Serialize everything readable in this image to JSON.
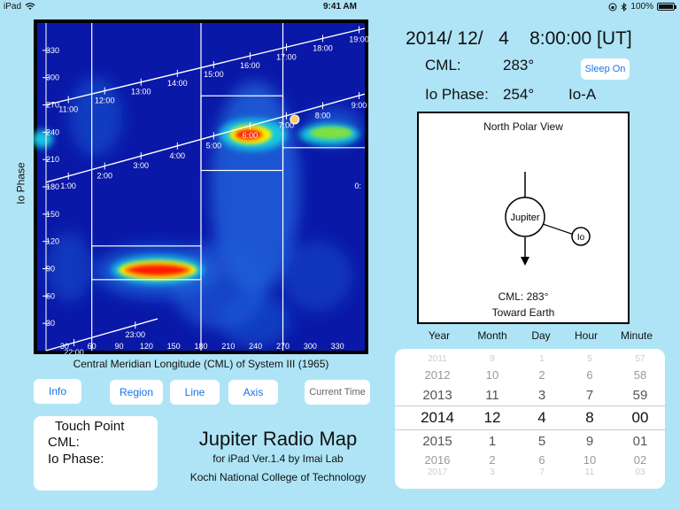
{
  "status": {
    "device": "iPad",
    "time": "9:41 AM",
    "battery": "100%"
  },
  "map": {
    "xlabel": "Central Meridian Longitude (CML) of System III (1965)",
    "ylabel": "Io Phase",
    "x_ticks": [
      "30",
      "60",
      "90",
      "120",
      "150",
      "180",
      "210",
      "240",
      "270",
      "300",
      "330"
    ],
    "y_ticks": [
      "330",
      "300",
      "270",
      "240",
      "210",
      "180",
      "150",
      "120",
      "90",
      "60",
      "30"
    ],
    "hour_labels_row1": [
      "11:00",
      "12:00",
      "13:00",
      "14:00",
      "15:00",
      "16:00",
      "17:00",
      "18:00",
      "19:00"
    ],
    "hour_labels_row2": [
      "1:00",
      "2:00",
      "3:00",
      "4:00",
      "5:00",
      "6:00",
      "7:00",
      "8:00",
      "9:00"
    ],
    "hour_labels_row3": [
      "22:00",
      "23:00"
    ],
    "edge_label": "0:",
    "colors": {
      "background": "#000000",
      "low": "#0b1fb0",
      "mid": "#1f6fe0",
      "hot": "#ff2200",
      "line": "#ffffff",
      "marker": "#ffcc66"
    }
  },
  "buttons": {
    "info": "Info",
    "region": "Region",
    "line": "Line",
    "axis": "Axis",
    "current_time": "Current Time",
    "sleep": "Sleep On"
  },
  "touch": {
    "title": "Touch Point",
    "cml_label": "CML:",
    "io_label": "Io Phase:"
  },
  "app": {
    "title": "Jupiter Radio Map",
    "version": "for iPad  Ver.1.4  by Imai Lab",
    "lab": "Kochi National College of Technology"
  },
  "info": {
    "datetime": "2014/ 12/   4    8:00:00 [UT]",
    "cml_label": "CML:",
    "cml_value": "283°",
    "io_label": "Io Phase:",
    "io_value": "254°",
    "io_source": "Io-A"
  },
  "polar": {
    "title": "North Polar View",
    "jupiter": "Jupiter",
    "io": "Io",
    "cml": "CML: 283°",
    "toward": "Toward Earth"
  },
  "picker": {
    "headers": [
      "Year",
      "Month",
      "Day",
      "Hour",
      "Minute"
    ],
    "columns": [
      [
        "2011",
        "2012",
        "2013",
        "2014",
        "2015",
        "2016",
        "2017"
      ],
      [
        "9",
        "10",
        "11",
        "12",
        "1",
        "2",
        "3"
      ],
      [
        "1",
        "2",
        "3",
        "4",
        "5",
        "6",
        "7"
      ],
      [
        "5",
        "6",
        "7",
        "8",
        "9",
        "10",
        "11"
      ],
      [
        "57",
        "58",
        "59",
        "00",
        "01",
        "02",
        "03"
      ]
    ]
  }
}
